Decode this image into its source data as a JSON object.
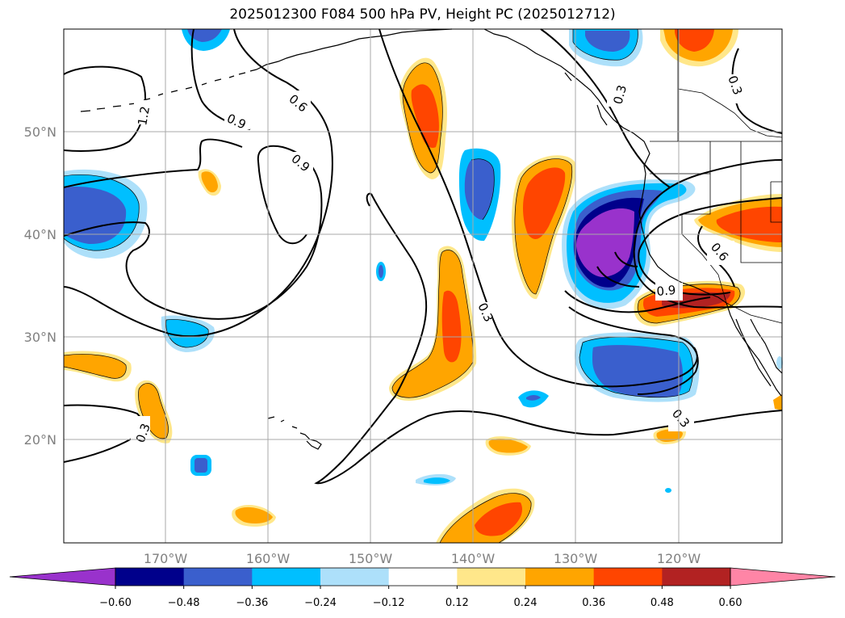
{
  "title": "2025012300 F084 500 hPa PV, Height PC (2025012712)",
  "map": {
    "lon_range": [
      180,
      110
    ],
    "lat_range": [
      10,
      60
    ],
    "lat_labels": [
      "50°N",
      "40°N",
      "30°N",
      "20°N"
    ],
    "lon_labels": [
      "170°W",
      "160°W",
      "150°W",
      "140°W",
      "130°W",
      "120°W"
    ],
    "contour_labels": [
      "1.2",
      "0.9",
      "0.6",
      "0.9",
      "0.3",
      "0.3",
      "0.3",
      "0.6",
      "0.9",
      "0.3",
      "0.3"
    ]
  },
  "colorbar": {
    "ticks": [
      "−0.60",
      "−0.48",
      "−0.36",
      "−0.24",
      "−0.12",
      "0.12",
      "0.24",
      "0.36",
      "0.48",
      "0.60"
    ],
    "colors": [
      "#9932CC",
      "#00008B",
      "#3A5FCD",
      "#00BFFF",
      "#ADE0FA",
      "#FFFFFF",
      "#FFE78A",
      "#FFA500",
      "#FF4500",
      "#B22222",
      "#FF85A6"
    ]
  }
}
